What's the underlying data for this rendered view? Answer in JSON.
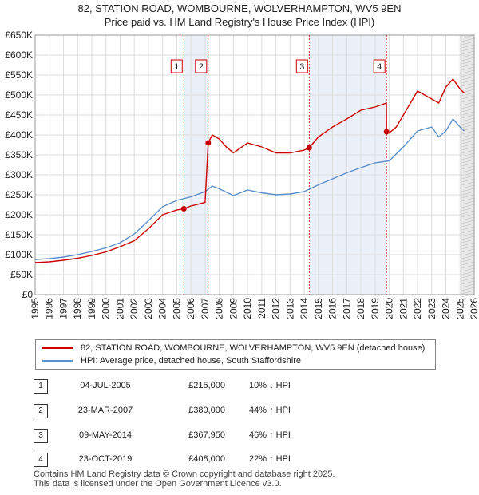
{
  "title_line1": "82, STATION ROAD, WOMBOURNE, WOLVERHAMPTON, WV5 9EN",
  "title_line2": "Price paid vs. HM Land Registry's House Price Index (HPI)",
  "colors": {
    "property": "#cc0000",
    "hpi": "#5b8fc9",
    "marker_box": "#cc0000",
    "shade": "#dde6f5"
  },
  "legend": {
    "property_label": "82, STATION ROAD, WOMBOURNE, WOLVERHAMPTON, WV5 9EN (detached house)",
    "hpi_label": "HPI: Average price, detached house, South Staffordshire"
  },
  "sales": [
    {
      "num": "1",
      "date": "04-JUL-2005",
      "price": "£215,000",
      "hpi": "10% ↓ HPI"
    },
    {
      "num": "2",
      "date": "23-MAR-2007",
      "price": "£380,000",
      "hpi": "44% ↑ HPI"
    },
    {
      "num": "3",
      "date": "09-MAY-2014",
      "price": "£367,950",
      "hpi": "46% ↑ HPI"
    },
    {
      "num": "4",
      "date": "23-OCT-2019",
      "price": "£408,000",
      "hpi": "22% ↑ HPI"
    }
  ],
  "footer_line1": "Contains HM Land Registry data © Crown copyright and database right 2025.",
  "footer_line2": "This data is licensed under the Open Government Licence v3.0.",
  "chart_data": {
    "type": "line",
    "title": "82, STATION ROAD, WOMBOURNE, WOLVERHAMPTON, WV5 9EN",
    "subtitle": "Price paid vs. HM Land Registry's House Price Index (HPI)",
    "xlabel": "",
    "ylabel": "",
    "xlim": [
      1995,
      2026
    ],
    "ylim": [
      0,
      650000
    ],
    "x_ticks": [
      1995,
      1996,
      1997,
      1998,
      1999,
      2000,
      2001,
      2002,
      2003,
      2004,
      2005,
      2006,
      2007,
      2008,
      2009,
      2010,
      2011,
      2012,
      2013,
      2014,
      2015,
      2016,
      2017,
      2018,
      2019,
      2020,
      2021,
      2022,
      2023,
      2024,
      2025,
      2026
    ],
    "y_ticks": [
      0,
      50000,
      100000,
      150000,
      200000,
      250000,
      300000,
      350000,
      400000,
      450000,
      500000,
      550000,
      600000,
      650000
    ],
    "y_tick_labels": [
      "£0",
      "£50K",
      "£100K",
      "£150K",
      "£200K",
      "£250K",
      "£300K",
      "£350K",
      "£400K",
      "£450K",
      "£500K",
      "£550K",
      "£600K",
      "£650K"
    ],
    "grid": true,
    "legend_position": "below",
    "sale_markers": [
      {
        "label": "1",
        "x": 2005.5,
        "y": 215000
      },
      {
        "label": "2",
        "x": 2007.22,
        "y": 380000
      },
      {
        "label": "3",
        "x": 2014.35,
        "y": 367950
      },
      {
        "label": "4",
        "x": 2019.81,
        "y": 408000
      }
    ],
    "series": [
      {
        "name": "82, STATION ROAD, WOMBOURNE, WOLVERHAMPTON, WV5 9EN (detached house)",
        "x": [
          1995,
          1996,
          1997,
          1998,
          1999,
          2000,
          2001,
          2002,
          2003,
          2004,
          2005,
          2005.5,
          2006,
          2007,
          2007.22,
          2007.5,
          2008,
          2008.5,
          2009,
          2010,
          2011,
          2012,
          2013,
          2014,
          2014.35,
          2015,
          2016,
          2017,
          2018,
          2019,
          2019.8,
          2019.81,
          2020,
          2020.5,
          2021,
          2022,
          2023,
          2023.5,
          2024,
          2024.5,
          2025,
          2025.3
        ],
        "y": [
          80000,
          82000,
          86000,
          91000,
          98000,
          107000,
          120000,
          135000,
          165000,
          200000,
          212000,
          215000,
          222000,
          231000,
          380000,
          400000,
          390000,
          370000,
          355000,
          380000,
          370000,
          355000,
          355000,
          362000,
          367950,
          395000,
          420000,
          440000,
          462000,
          470000,
          480000,
          408000,
          405000,
          420000,
          450000,
          510000,
          490000,
          480000,
          520000,
          540000,
          515000,
          505000
        ]
      },
      {
        "name": "HPI: Average price, detached house, South Staffordshire",
        "x": [
          1995,
          1996,
          1997,
          1998,
          1999,
          2000,
          2001,
          2002,
          2003,
          2004,
          2005,
          2006,
          2007,
          2007.5,
          2008,
          2009,
          2010,
          2011,
          2012,
          2013,
          2014,
          2015,
          2016,
          2017,
          2018,
          2019,
          2020,
          2021,
          2022,
          2023,
          2023.5,
          2024,
          2024.5,
          2025,
          2025.3
        ],
        "y": [
          88000,
          90000,
          94000,
          100000,
          108000,
          117000,
          130000,
          152000,
          185000,
          220000,
          236000,
          245000,
          258000,
          272000,
          265000,
          248000,
          262000,
          255000,
          250000,
          252000,
          258000,
          275000,
          290000,
          305000,
          318000,
          330000,
          335000,
          370000,
          410000,
          420000,
          395000,
          410000,
          440000,
          420000,
          410000
        ]
      }
    ]
  }
}
